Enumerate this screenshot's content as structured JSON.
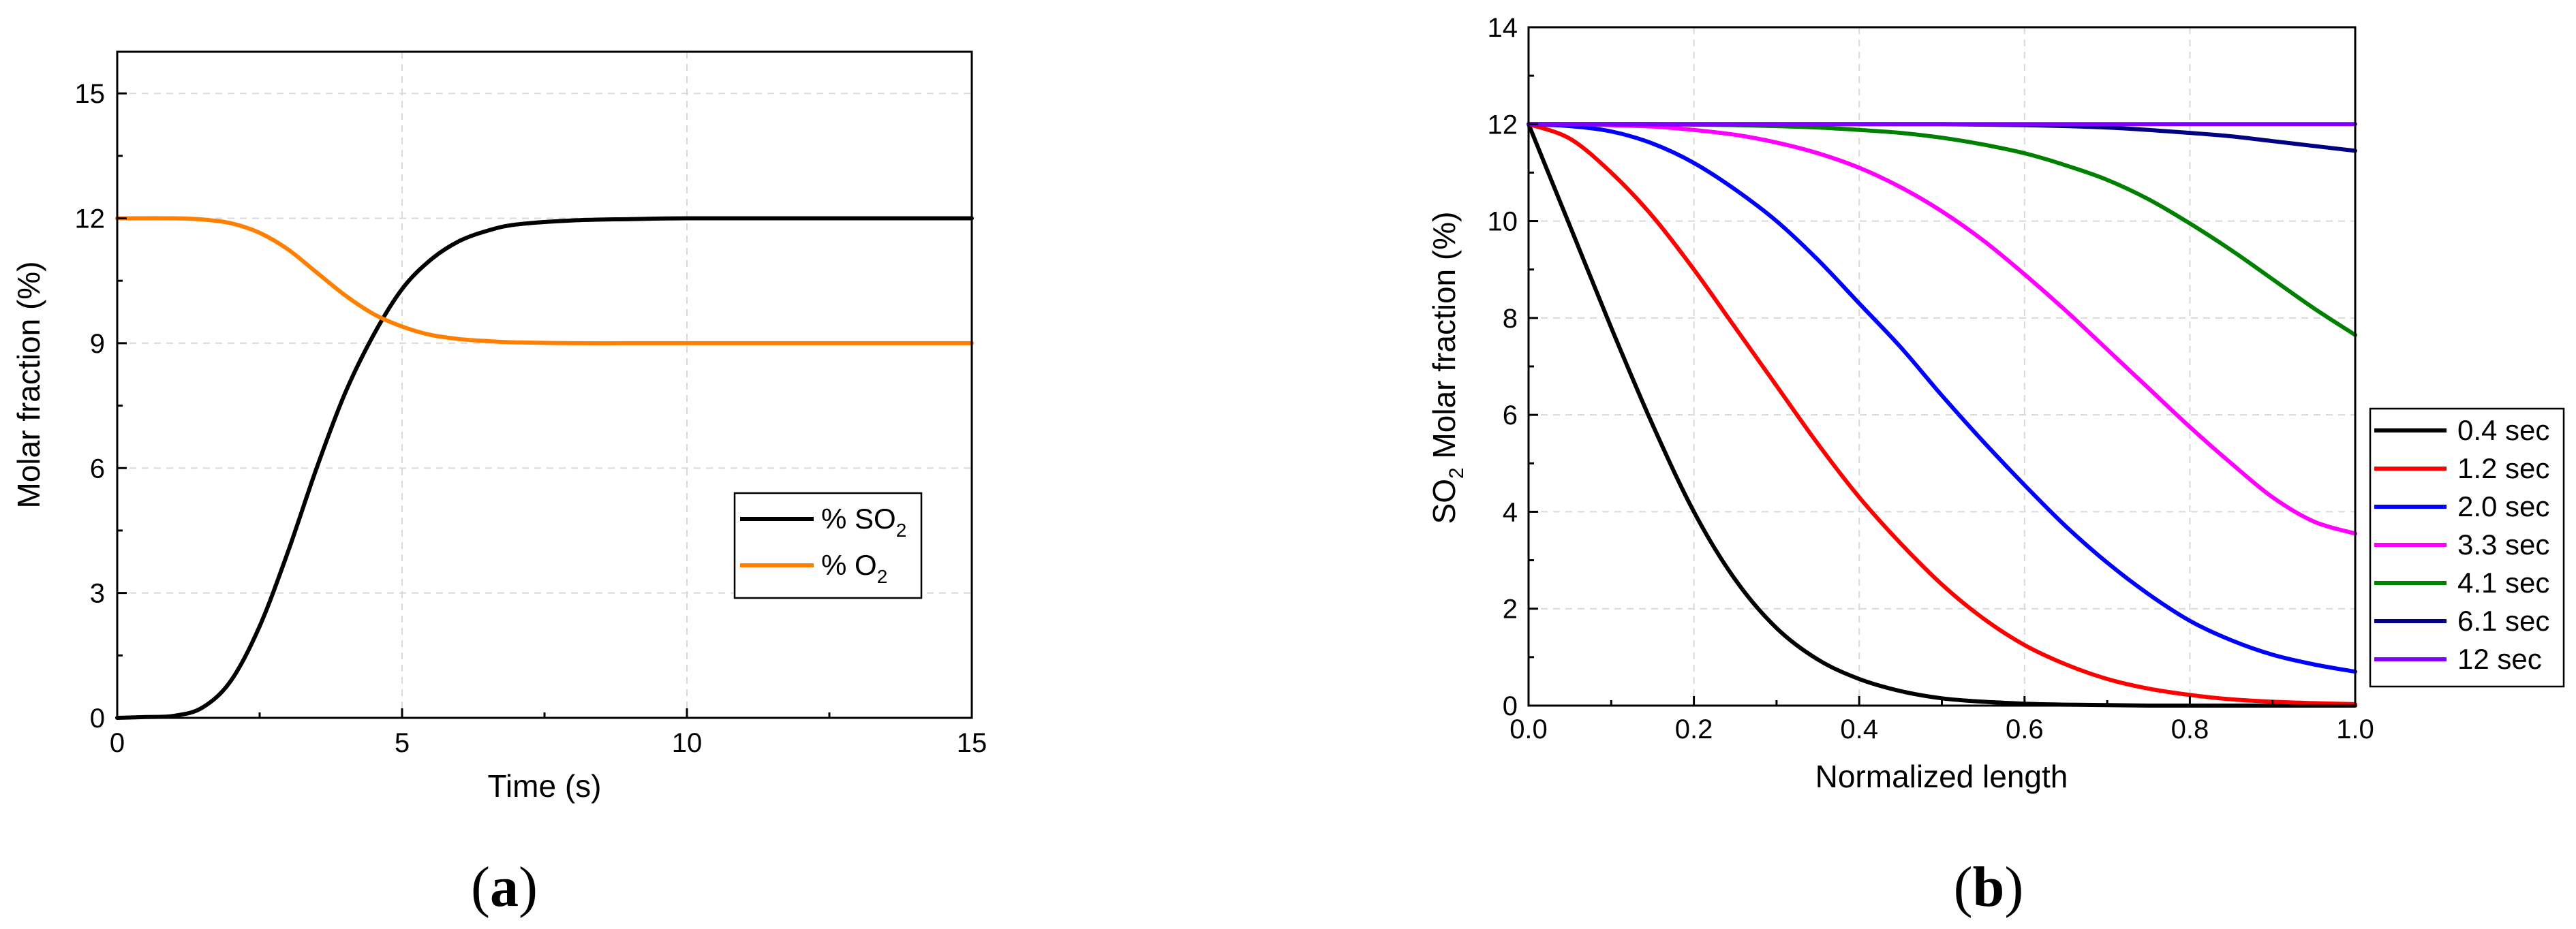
{
  "chart_data": [
    {
      "type": "line",
      "panel_label": "a",
      "title": "",
      "xlabel": "Time (s)",
      "ylabel": "Molar fraction (%)",
      "xlim": [
        0,
        15
      ],
      "ylim": [
        0,
        16
      ],
      "xticks": [
        0,
        5,
        10,
        15
      ],
      "yticks": [
        0,
        3,
        6,
        9,
        12,
        15
      ],
      "grid": true,
      "legend_position": "lower-right",
      "series": [
        {
          "name": "% SO",
          "name_sub": "2",
          "color": "#000000",
          "x": [
            0,
            0.5,
            1.0,
            1.5,
            2.0,
            2.5,
            3.0,
            3.5,
            4.0,
            4.5,
            5.0,
            5.5,
            6.0,
            6.5,
            7.0,
            8.0,
            9.0,
            10.0,
            12.0,
            15.0
          ],
          "y": [
            0,
            0.02,
            0.05,
            0.25,
            0.9,
            2.2,
            4.0,
            6.0,
            7.8,
            9.2,
            10.3,
            11.0,
            11.45,
            11.7,
            11.85,
            11.95,
            11.98,
            12.0,
            12.0,
            12.0
          ]
        },
        {
          "name": "% O",
          "name_sub": "2",
          "color": "#ff8000",
          "x": [
            0,
            1.0,
            1.5,
            2.0,
            2.5,
            3.0,
            3.5,
            4.0,
            4.5,
            5.0,
            5.5,
            6.0,
            6.5,
            7.0,
            8.0,
            9.0,
            10.0,
            12.0,
            15.0
          ],
          "y": [
            12,
            12,
            11.97,
            11.88,
            11.65,
            11.25,
            10.7,
            10.15,
            9.7,
            9.4,
            9.2,
            9.1,
            9.05,
            9.02,
            9.0,
            9.0,
            9.0,
            9.0,
            9.0
          ]
        }
      ]
    },
    {
      "type": "line",
      "panel_label": "b",
      "title": "",
      "xlabel": "Normalized length",
      "ylabel_prefix": "SO",
      "ylabel_sub": "2",
      "ylabel_suffix": " Molar fraction (%)",
      "xlim": [
        0,
        1
      ],
      "ylim": [
        0,
        14
      ],
      "xticks": [
        "0.0",
        "0.2",
        "0.4",
        "0.6",
        "0.8",
        "1.0"
      ],
      "yticks": [
        "0",
        "2",
        "4",
        "6",
        "8",
        "10",
        "12",
        "14"
      ],
      "grid": true,
      "legend_position": "right",
      "x": [
        0,
        0.05,
        0.1,
        0.15,
        0.2,
        0.25,
        0.3,
        0.35,
        0.4,
        0.45,
        0.5,
        0.55,
        0.6,
        0.65,
        0.7,
        0.75,
        0.8,
        0.85,
        0.9,
        0.95,
        1.0
      ],
      "series": [
        {
          "name": "0.4 sec",
          "color": "#000000",
          "y": [
            12,
            9.9,
            7.8,
            5.8,
            4.0,
            2.6,
            1.6,
            0.95,
            0.55,
            0.3,
            0.15,
            0.08,
            0.04,
            0.02,
            0.01,
            0,
            0,
            0,
            0,
            0,
            0
          ]
        },
        {
          "name": "1.2 sec",
          "color": "#ff0000",
          "y": [
            12,
            11.7,
            11.0,
            10.1,
            9.0,
            7.8,
            6.6,
            5.4,
            4.3,
            3.35,
            2.5,
            1.8,
            1.25,
            0.85,
            0.55,
            0.35,
            0.22,
            0.13,
            0.08,
            0.05,
            0.03
          ]
        },
        {
          "name": "2.0 sec",
          "color": "#0000ff",
          "y": [
            12,
            11.96,
            11.85,
            11.6,
            11.2,
            10.65,
            10.0,
            9.2,
            8.3,
            7.4,
            6.4,
            5.45,
            4.55,
            3.7,
            2.95,
            2.3,
            1.75,
            1.35,
            1.05,
            0.85,
            0.7
          ]
        },
        {
          "name": "3.3 sec",
          "color": "#ff00ff",
          "y": [
            12,
            12,
            11.98,
            11.95,
            11.88,
            11.78,
            11.62,
            11.4,
            11.1,
            10.7,
            10.2,
            9.6,
            8.9,
            8.15,
            7.35,
            6.55,
            5.75,
            5.0,
            4.3,
            3.8,
            3.55
          ]
        },
        {
          "name": "4.1 sec",
          "color": "#008000",
          "y": [
            12,
            12,
            12,
            12,
            11.99,
            11.98,
            11.96,
            11.93,
            11.88,
            11.82,
            11.72,
            11.58,
            11.4,
            11.15,
            10.85,
            10.45,
            9.95,
            9.4,
            8.8,
            8.2,
            7.65
          ]
        },
        {
          "name": "6.1 sec",
          "color": "#000080",
          "y": [
            12,
            12,
            12,
            12,
            12,
            12,
            12,
            12,
            12,
            12,
            12,
            11.99,
            11.98,
            11.96,
            11.93,
            11.88,
            11.82,
            11.75,
            11.65,
            11.55,
            11.45
          ]
        },
        {
          "name": "12 sec",
          "color": "#8000ff",
          "y": [
            12,
            12,
            12,
            12,
            12,
            12,
            12,
            12,
            12,
            12,
            12,
            12,
            12,
            12,
            12,
            12,
            12,
            12,
            12,
            12,
            12
          ]
        }
      ]
    }
  ]
}
